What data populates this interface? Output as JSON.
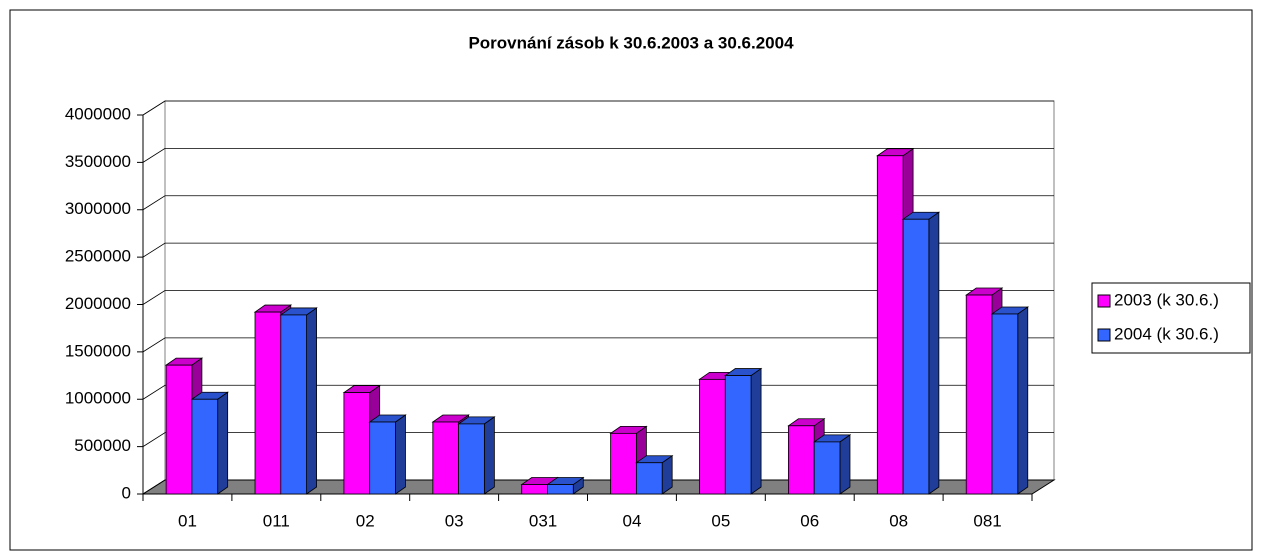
{
  "chart_data": {
    "type": "bar3d",
    "title": "Porovnání zásob k 30.6.2003 a 30.6.2004",
    "categories": [
      "01",
      "011",
      "02",
      "03",
      "031",
      "04",
      "05",
      "06",
      "08",
      "081"
    ],
    "series": [
      {
        "name": "2003 (k 30.6.)",
        "color": "#ff00ff",
        "values": [
          1360000,
          1920000,
          1070000,
          760000,
          100000,
          640000,
          1210000,
          720000,
          3570000,
          2100000
        ]
      },
      {
        "name": "2004 (k 30.6.)",
        "color": "#3366ff",
        "values": [
          1000000,
          1890000,
          760000,
          740000,
          100000,
          330000,
          1250000,
          550000,
          2900000,
          1900000
        ]
      }
    ],
    "ylim": [
      0,
      4000000
    ],
    "yticks": [
      0,
      500000,
      1000000,
      1500000,
      2000000,
      2500000,
      3000000,
      3500000,
      4000000
    ],
    "grid": true,
    "legend": "right"
  }
}
